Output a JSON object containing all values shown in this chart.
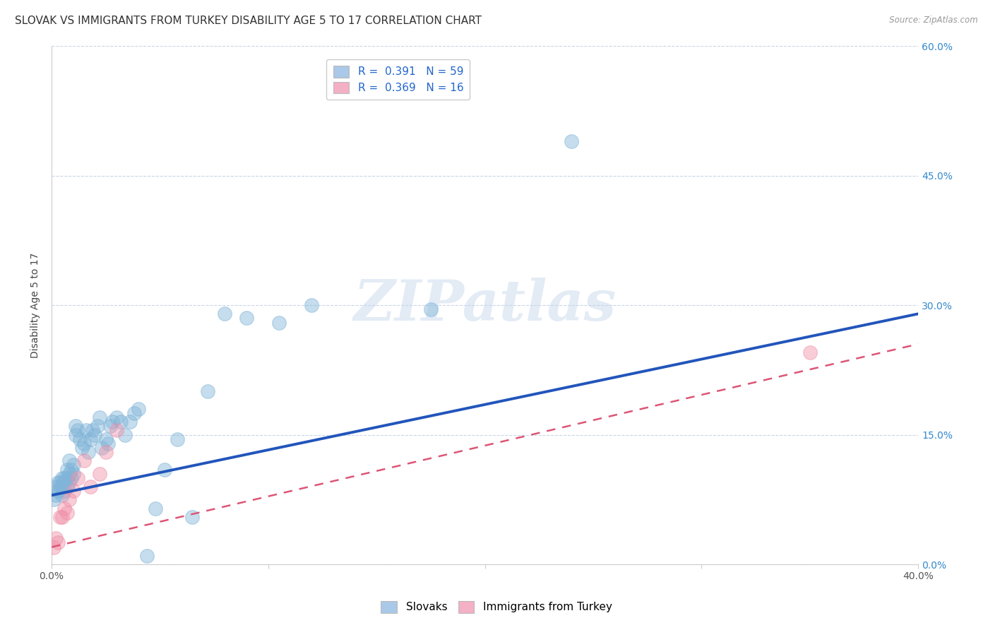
{
  "title": "SLOVAK VS IMMIGRANTS FROM TURKEY DISABILITY AGE 5 TO 17 CORRELATION CHART",
  "source": "Source: ZipAtlas.com",
  "xlabel": "",
  "ylabel": "Disability Age 5 to 17",
  "xlim": [
    0.0,
    0.4
  ],
  "ylim": [
    0.0,
    0.6
  ],
  "xticks": [
    0.0,
    0.1,
    0.2,
    0.3,
    0.4
  ],
  "yticks": [
    0.0,
    0.15,
    0.3,
    0.45,
    0.6
  ],
  "ytick_labels_right": [
    "0.0%",
    "15.0%",
    "30.0%",
    "45.0%",
    "60.0%"
  ],
  "xtick_labels": [
    "0.0%",
    "",
    "",
    "",
    "40.0%"
  ],
  "legend_entry1_label": "R =  0.391   N = 59",
  "legend_entry2_label": "R =  0.369   N = 16",
  "legend_color1": "#aac8e8",
  "legend_color2": "#f4b0c4",
  "series1_color": "#80b4d8",
  "series2_color": "#f090a8",
  "line1_color": "#2255bb",
  "line2_color": "#dd5575",
  "watermark": "ZIPatlas",
  "background_color": "#ffffff",
  "grid_color": "#c8d4e8",
  "title_fontsize": 11,
  "axis_label_fontsize": 10,
  "tick_fontsize": 10,
  "slovaks_x": [
    0.001,
    0.002,
    0.002,
    0.003,
    0.003,
    0.004,
    0.004,
    0.005,
    0.005,
    0.005,
    0.006,
    0.006,
    0.006,
    0.007,
    0.007,
    0.007,
    0.008,
    0.008,
    0.008,
    0.009,
    0.009,
    0.01,
    0.01,
    0.011,
    0.011,
    0.012,
    0.013,
    0.014,
    0.015,
    0.016,
    0.017,
    0.018,
    0.019,
    0.02,
    0.021,
    0.022,
    0.023,
    0.025,
    0.026,
    0.027,
    0.028,
    0.03,
    0.032,
    0.034,
    0.036,
    0.038,
    0.04,
    0.044,
    0.048,
    0.052,
    0.058,
    0.065,
    0.072,
    0.08,
    0.09,
    0.105,
    0.12,
    0.175,
    0.24
  ],
  "slovaks_y": [
    0.075,
    0.08,
    0.09,
    0.085,
    0.095,
    0.09,
    0.095,
    0.08,
    0.09,
    0.1,
    0.085,
    0.095,
    0.1,
    0.09,
    0.1,
    0.11,
    0.095,
    0.105,
    0.12,
    0.1,
    0.11,
    0.105,
    0.115,
    0.15,
    0.16,
    0.155,
    0.145,
    0.135,
    0.14,
    0.155,
    0.13,
    0.145,
    0.155,
    0.15,
    0.16,
    0.17,
    0.135,
    0.145,
    0.14,
    0.16,
    0.165,
    0.17,
    0.165,
    0.15,
    0.165,
    0.175,
    0.18,
    0.01,
    0.065,
    0.11,
    0.145,
    0.055,
    0.2,
    0.29,
    0.285,
    0.28,
    0.3,
    0.295,
    0.49
  ],
  "turkey_x": [
    0.001,
    0.002,
    0.003,
    0.004,
    0.005,
    0.006,
    0.007,
    0.008,
    0.01,
    0.012,
    0.015,
    0.018,
    0.022,
    0.025,
    0.03,
    0.35
  ],
  "turkey_y": [
    0.02,
    0.03,
    0.025,
    0.055,
    0.055,
    0.065,
    0.06,
    0.075,
    0.085,
    0.1,
    0.12,
    0.09,
    0.105,
    0.13,
    0.155,
    0.245
  ],
  "line1_x0": 0.0,
  "line1_y0": 0.08,
  "line1_x1": 0.4,
  "line1_y1": 0.29,
  "line2_x0": 0.0,
  "line2_y0": 0.02,
  "line2_x1": 0.4,
  "line2_y1": 0.255
}
